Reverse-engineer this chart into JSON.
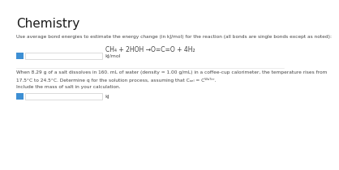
{
  "title": "Chemistry",
  "title_fontsize": 11,
  "bg_color": "#ffffff",
  "text_color": "#444444",
  "q1_instruction": "Use average bond energies to estimate the energy change (in kJ/mol) for the reaction (all bonds are single bonds except as noted):",
  "q1_equation": "CH₄ + 2HOH →O=C=O + 4H₂",
  "q1_unit": "kJ/mol",
  "q2_line1": "When 8.29 g of a salt dissolves in 160. mL of water (density = 1.00 g/mL) in a coffee-cup calorimeter, the temperature rises from",
  "q2_line2": "17.5°C to 24.5°C. Determine q for the solution process, assuming that Cₐₑₗ = Cᵂᵃᵀᵉʳ.",
  "q2_line3": "Include the mass of salt in your calculation.",
  "q2_unit": "kJ",
  "input_box_color": "#3d8fd4",
  "small_fontsize": 4.2,
  "eq_fontsize": 5.5,
  "unit_fontsize": 4.5
}
